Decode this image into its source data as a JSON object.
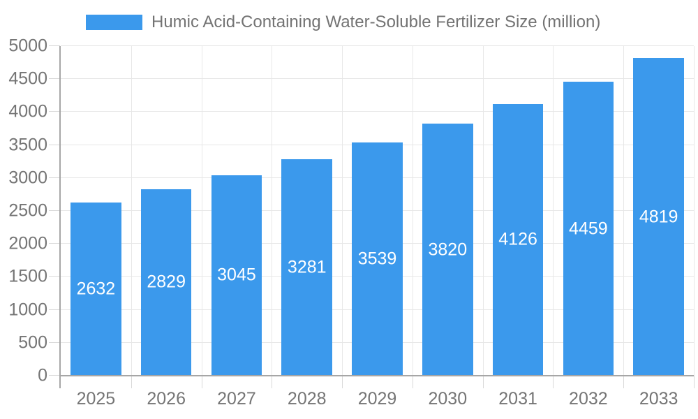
{
  "chart_data": {
    "type": "bar",
    "title": "",
    "legend": {
      "label": "Humic Acid-Containing Water-Soluble Fertilizer Size (million)",
      "position": "top"
    },
    "categories": [
      "2025",
      "2026",
      "2027",
      "2028",
      "2029",
      "2030",
      "2031",
      "2032",
      "2033"
    ],
    "values": [
      2632,
      2829,
      3045,
      3281,
      3539,
      3820,
      4126,
      4459,
      4819
    ],
    "xlabel": "",
    "ylabel": "",
    "ylim": [
      0,
      5000
    ],
    "yticks": [
      0,
      500,
      1000,
      1500,
      2000,
      2500,
      3000,
      3500,
      4000,
      4500,
      5000
    ],
    "grid": true,
    "colors": {
      "bar": "#3b99ec",
      "bar_value_label": "#ffffff",
      "axis_text": "#757575",
      "legend_text": "#737373",
      "gridline": "#e7e7e7",
      "tick": "#d9d9d9",
      "axis_line": "#a6a6a6",
      "background": "#ffffff"
    }
  }
}
